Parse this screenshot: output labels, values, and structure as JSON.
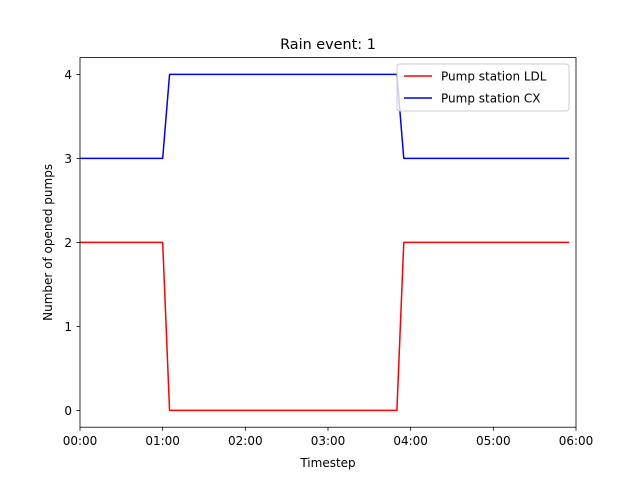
{
  "chart_data": {
    "type": "line",
    "title": "Rain event: 1",
    "xlabel": "Timestep",
    "ylabel": "Number of opened pumps",
    "x": [
      "00:00",
      "00:05",
      "00:10",
      "00:15",
      "00:20",
      "00:25",
      "00:30",
      "00:35",
      "00:40",
      "00:45",
      "00:50",
      "00:55",
      "01:00",
      "01:05",
      "01:10",
      "01:15",
      "01:20",
      "01:25",
      "01:30",
      "01:35",
      "01:40",
      "01:45",
      "01:50",
      "01:55",
      "02:00",
      "02:05",
      "02:10",
      "02:15",
      "02:20",
      "02:25",
      "02:30",
      "02:35",
      "02:40",
      "02:45",
      "02:50",
      "02:55",
      "03:00",
      "03:05",
      "03:10",
      "03:15",
      "03:20",
      "03:25",
      "03:30",
      "03:35",
      "03:40",
      "03:45",
      "03:50",
      "03:55",
      "04:00",
      "04:05",
      "04:10",
      "04:15",
      "04:20",
      "04:25",
      "04:30",
      "04:35",
      "04:40",
      "04:45",
      "04:50",
      "04:55",
      "05:00",
      "05:05",
      "05:10",
      "05:15",
      "05:20",
      "05:25",
      "05:30",
      "05:35",
      "05:40",
      "05:45",
      "05:50",
      "05:55"
    ],
    "series": [
      {
        "name": "Pump station LDL",
        "color": "#ff0000",
        "values": [
          2,
          2,
          2,
          2,
          2,
          2,
          2,
          2,
          2,
          2,
          2,
          2,
          2,
          0,
          0,
          0,
          0,
          0,
          0,
          0,
          0,
          0,
          0,
          0,
          0,
          0,
          0,
          0,
          0,
          0,
          0,
          0,
          0,
          0,
          0,
          0,
          0,
          0,
          0,
          0,
          0,
          0,
          0,
          0,
          0,
          0,
          0,
          2,
          2,
          2,
          2,
          2,
          2,
          2,
          2,
          2,
          2,
          2,
          2,
          2,
          2,
          2,
          2,
          2,
          2,
          2,
          2,
          2,
          2,
          2,
          2,
          2
        ]
      },
      {
        "name": "Pump station CX",
        "color": "#0000ff",
        "values": [
          3,
          3,
          3,
          3,
          3,
          3,
          3,
          3,
          3,
          3,
          3,
          3,
          3,
          4,
          4,
          4,
          4,
          4,
          4,
          4,
          4,
          4,
          4,
          4,
          4,
          4,
          4,
          4,
          4,
          4,
          4,
          4,
          4,
          4,
          4,
          4,
          4,
          4,
          4,
          4,
          4,
          4,
          4,
          4,
          4,
          4,
          4,
          3,
          3,
          3,
          3,
          3,
          3,
          3,
          3,
          3,
          3,
          3,
          3,
          3,
          3,
          3,
          3,
          3,
          3,
          3,
          3,
          3,
          3,
          3,
          3,
          3
        ]
      }
    ],
    "x_ticks": [
      "00:00",
      "01:00",
      "02:00",
      "03:00",
      "04:00",
      "05:00",
      "06:00"
    ],
    "y_ticks": [
      "0",
      "1",
      "2",
      "3",
      "4"
    ],
    "xlim": [
      "00:00",
      "06:00"
    ],
    "ylim": [
      -0.2,
      4.2
    ],
    "grid": false,
    "legend_position": "top-right"
  }
}
